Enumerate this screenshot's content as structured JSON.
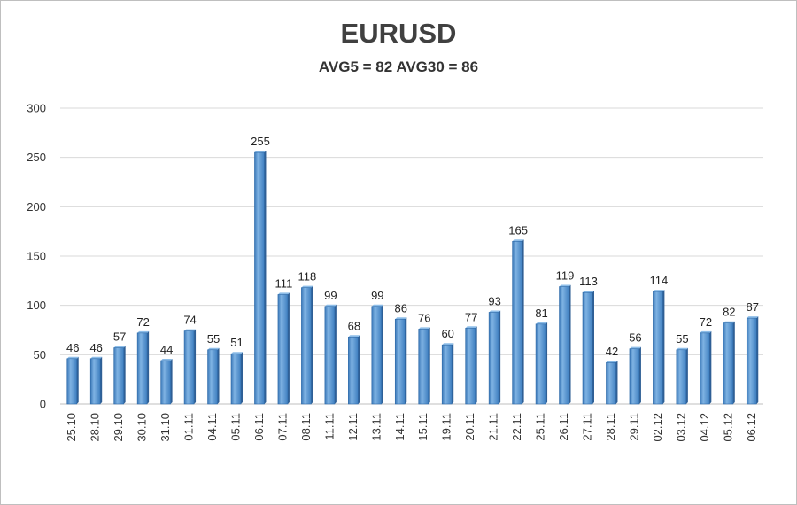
{
  "chart_data": {
    "type": "bar",
    "title": "EURUSD",
    "subtitle": "AVG5 = 82 AVG30 = 86",
    "categories": [
      "25.10",
      "28.10",
      "29.10",
      "30.10",
      "31.10",
      "01.11",
      "04.11",
      "05.11",
      "06.11",
      "07.11",
      "08.11",
      "11.11",
      "12.11",
      "13.11",
      "14.11",
      "15.11",
      "19.11",
      "20.11",
      "21.11",
      "22.11",
      "25.11",
      "26.11",
      "27.11",
      "28.11",
      "29.11",
      "02.12",
      "03.12",
      "04.12",
      "05.12",
      "06.12"
    ],
    "values": [
      46,
      46,
      57,
      72,
      44,
      74,
      55,
      51,
      255,
      111,
      118,
      99,
      68,
      99,
      86,
      76,
      60,
      77,
      93,
      165,
      81,
      119,
      113,
      42,
      56,
      114,
      55,
      72,
      82,
      87
    ],
    "ylim": [
      0,
      300
    ],
    "yticks": [
      0,
      50,
      100,
      150,
      200,
      250,
      300
    ],
    "grid": true,
    "data_labels": true,
    "bar_color": "#5b9bd5"
  }
}
